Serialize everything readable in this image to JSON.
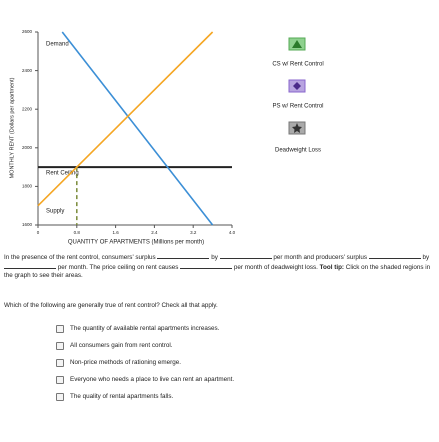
{
  "chart_data": {
    "type": "line",
    "x_label": "QUANTITY OF APARTMENTS (Millions per month)",
    "y_label": "MONTHLY RENT (Dollars per apartment)",
    "xlim": [
      0,
      4
    ],
    "xticks": [
      0,
      0.8,
      1.6,
      2.4,
      3.2,
      {
        "value": 4,
        "label": "4.0"
      }
    ],
    "ylim": [
      1600,
      2600
    ],
    "yticks": [
      1600,
      1800,
      2000,
      2200,
      2400,
      2600
    ],
    "series": [
      {
        "name": "Demand",
        "color": "#3c8fd6",
        "x": [
          0.5,
          3.6
        ],
        "values": [
          2600,
          1600
        ]
      },
      {
        "name": "Supply",
        "color": "#f5a623",
        "x": [
          0,
          3.6
        ],
        "values": [
          1700,
          2600
        ]
      }
    ],
    "ceiling": {
      "label": "Rent Ceiling",
      "value": 1900
    }
  },
  "tools": [
    "CS w/ Rent Control",
    "PS w/ Rent Control",
    "Deadweight Loss"
  ],
  "paragraph": {
    "p1": "In the presence of the rent control, consumers' surplus",
    "p2": "by",
    "p3": "per month and producers' surplus",
    "p4": "by",
    "p5": "per month. The price ceiling on rent causes",
    "p6": "per month of deadweight loss.",
    "tip_label": "Tool tip:",
    "tip": "Click on the shaded regions in the graph to see their areas."
  },
  "question": "Which of the following are generally true of rent control? Check all that apply.",
  "options": [
    "The quantity of available rental apartments increases.",
    "All consumers gain from rent control.",
    "Non-price methods of rationing emerge.",
    "Everyone who needs a place to live can rent an apartment.",
    "The quality of rental apartments falls."
  ]
}
